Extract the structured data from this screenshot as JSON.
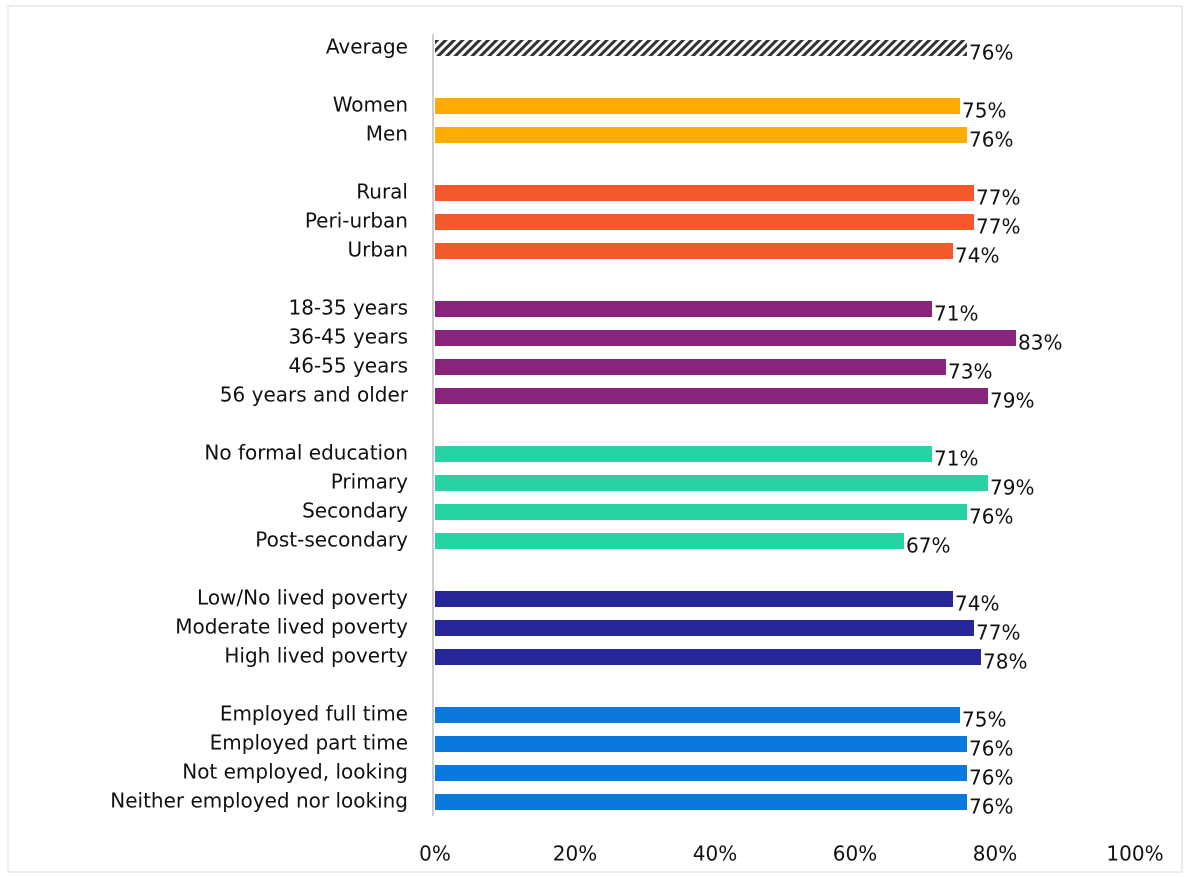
{
  "chart_data": {
    "type": "bar",
    "orientation": "horizontal",
    "categories": [
      "Average",
      null,
      "Women",
      "Men",
      null,
      "Rural",
      "Peri-urban",
      "Urban",
      null,
      "18-35 years",
      "36-45 years",
      "46-55 years",
      "56 years and older",
      null,
      "No formal education",
      "Primary",
      "Secondary",
      "Post-secondary",
      null,
      "Low/No lived poverty",
      "Moderate lived poverty",
      "High lived poverty",
      null,
      "Employed full time",
      "Employed part time",
      "Not employed, looking",
      "Neither employed nor looking"
    ],
    "values": [
      76,
      null,
      75,
      76,
      null,
      77,
      77,
      74,
      null,
      71,
      83,
      73,
      79,
      null,
      71,
      79,
      76,
      67,
      null,
      74,
      77,
      78,
      null,
      75,
      76,
      76,
      76
    ],
    "value_labels": [
      "76%",
      null,
      "75%",
      "76%",
      null,
      "77%",
      "77%",
      "74%",
      null,
      "71%",
      "83%",
      "73%",
      "79%",
      null,
      "71%",
      "79%",
      "76%",
      "67%",
      null,
      "74%",
      "77%",
      "78%",
      null,
      "75%",
      "76%",
      "76%",
      "76%"
    ],
    "colors": [
      "#333333",
      null,
      "#ffab00",
      "#ffab00",
      null,
      "#f4592b",
      "#f4592b",
      "#f4592b",
      null,
      "#88247a",
      "#88247a",
      "#88247a",
      "#88247a",
      null,
      "#27d3a2",
      "#27d3a2",
      "#27d3a2",
      "#27d3a2",
      null,
      "#27279a",
      "#27279a",
      "#27279a",
      null,
      "#0a78dc",
      "#0a78dc",
      "#0a78dc",
      "#0a78dc"
    ],
    "hatched_index": 0,
    "xlim": [
      0,
      100
    ],
    "xticks": [
      {
        "value": 0,
        "label": "0%"
      },
      {
        "value": 20,
        "label": "20%"
      },
      {
        "value": 40,
        "label": "40%"
      },
      {
        "value": 60,
        "label": "60%"
      },
      {
        "value": 80,
        "label": "80%"
      },
      {
        "value": 100,
        "label": "100%"
      }
    ],
    "grid": false
  }
}
